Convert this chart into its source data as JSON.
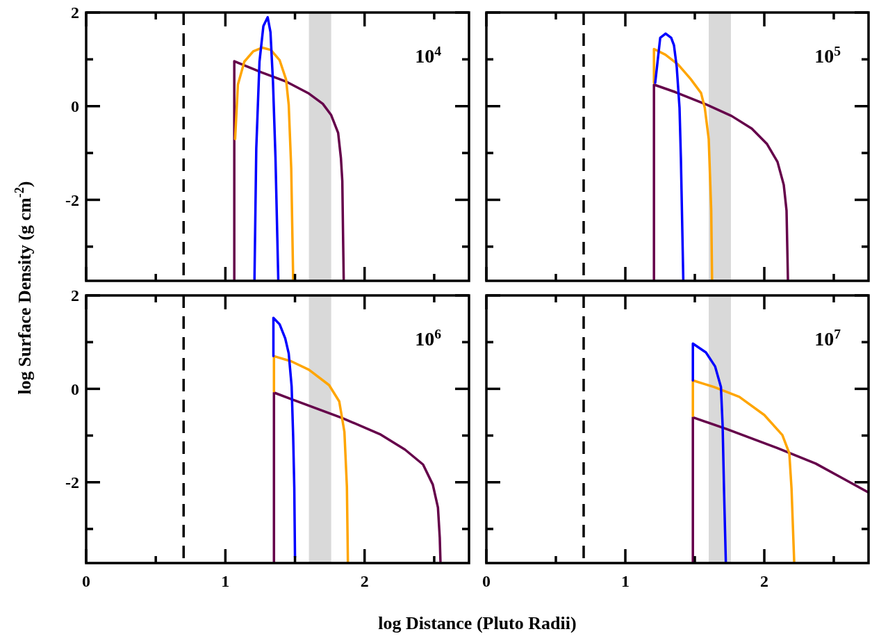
{
  "chart_data": [
    {
      "type": "line",
      "ylabel": "log Surface Density (g cm$^{-2}$)",
      "annotations": [
        "10$^{4}$"
      ],
      "xlim": [
        0,
        2.75
      ],
      "ylim": [
        -3.73,
        2
      ],
      "xticks": [
        0,
        {
          "value": 0.5,
          "label": null
        },
        1,
        {
          "value": 1.5,
          "label": null
        },
        2,
        {
          "value": 2.5,
          "label": null
        }
      ],
      "yticks": [
        {
          "value": -3,
          "label": null
        },
        -2,
        {
          "value": -1,
          "label": null
        },
        0,
        {
          "value": 1,
          "label": null
        },
        2
      ],
      "tick_labels": "y",
      "ref_lines": [
        {
          "axis": "x",
          "value": 0.7,
          "color": "#000000",
          "line_style": "dashed"
        }
      ],
      "bands": [
        {
          "axis": "x",
          "from": 1.6,
          "to": 1.76,
          "color": "#d9d9d9"
        }
      ],
      "series": [
        {
          "color": "#65004a",
          "x": [
            1.064,
            1.064,
            1.26,
            1.44,
            1.6,
            1.7,
            1.76,
            1.81,
            1.83,
            1.84,
            1.845,
            1.85
          ],
          "values": [
            -3.7,
            0.96,
            0.72,
            0.52,
            0.27,
            0.05,
            -0.19,
            -0.57,
            -1.11,
            -1.6,
            -2.7,
            -3.7
          ]
        },
        {
          "color": "#ffa500",
          "x": [
            1.07,
            1.09,
            1.136,
            1.2,
            1.264,
            1.327,
            1.39,
            1.436,
            1.455,
            1.473,
            1.487
          ],
          "values": [
            -0.7,
            0.46,
            0.95,
            1.17,
            1.25,
            1.2,
            0.98,
            0.57,
            0.03,
            -1.33,
            -3.7
          ]
        },
        {
          "color": "#0000ff",
          "x": [
            1.209,
            1.222,
            1.245,
            1.273,
            1.304,
            1.324,
            1.342,
            1.36,
            1.38
          ],
          "values": [
            -3.7,
            -0.9,
            0.95,
            1.71,
            1.9,
            1.58,
            0.52,
            -1.11,
            -3.7
          ]
        }
      ]
    },
    {
      "type": "line",
      "annotations": [
        "10$^{5}$"
      ],
      "xlim": [
        0,
        2.75
      ],
      "ylim": [
        -3.73,
        2
      ],
      "xticks": [
        0,
        {
          "value": 0.5,
          "label": null
        },
        1,
        {
          "value": 1.5,
          "label": null
        },
        2,
        {
          "value": 2.5,
          "label": null
        }
      ],
      "yticks": [
        {
          "value": -3,
          "label": null
        },
        -2,
        {
          "value": -1,
          "label": null
        },
        0,
        {
          "value": 1,
          "label": null
        },
        2
      ],
      "tick_labels": false,
      "ref_lines": [
        {
          "axis": "x",
          "value": 0.7,
          "color": "#000000",
          "line_style": "dashed"
        }
      ],
      "bands": [
        {
          "axis": "x",
          "from": 1.6,
          "to": 1.76,
          "color": "#d9d9d9"
        }
      ],
      "series": [
        {
          "color": "#65004a",
          "x": [
            1.206,
            1.206,
            1.36,
            1.58,
            1.765,
            1.91,
            2.02,
            2.095,
            2.14,
            2.16,
            2.17
          ],
          "values": [
            -3.7,
            0.46,
            0.3,
            0.04,
            -0.21,
            -0.48,
            -0.81,
            -1.19,
            -1.68,
            -2.23,
            -3.7
          ]
        },
        {
          "color": "#ffa500",
          "x": [
            1.206,
            1.206,
            1.288,
            1.38,
            1.47,
            1.545,
            1.572,
            1.6,
            1.618,
            1.624
          ],
          "values": [
            0.5,
            1.22,
            1.1,
            0.89,
            0.58,
            0.28,
            -0.04,
            -0.7,
            -2.23,
            -3.7
          ]
        },
        {
          "color": "#0000ff",
          "x": [
            1.215,
            1.251,
            1.29,
            1.33,
            1.35,
            1.37,
            1.39,
            1.4,
            1.417
          ],
          "values": [
            0.5,
            1.46,
            1.55,
            1.46,
            1.3,
            0.83,
            -0.04,
            -1.14,
            -3.7
          ]
        }
      ]
    },
    {
      "type": "line",
      "xlabel": "log Distance (Pluto Radii)",
      "annotations": [
        "10$^{6}$"
      ],
      "xlim": [
        0,
        2.75
      ],
      "ylim": [
        -3.73,
        2
      ],
      "xticks": [
        0,
        {
          "value": 0.5,
          "label": null
        },
        1,
        {
          "value": 1.5,
          "label": null
        },
        2,
        {
          "value": 2.5,
          "label": null
        }
      ],
      "yticks": [
        {
          "value": -3,
          "label": null
        },
        -2,
        {
          "value": -1,
          "label": null
        },
        0,
        {
          "value": 1,
          "label": null
        },
        2
      ],
      "ref_lines": [
        {
          "axis": "x",
          "value": 0.7,
          "color": "#000000",
          "line_style": "dashed"
        }
      ],
      "bands": [
        {
          "axis": "x",
          "from": 1.6,
          "to": 1.76,
          "color": "#d9d9d9"
        }
      ],
      "series": [
        {
          "color": "#65004a",
          "x": [
            1.349,
            1.349,
            1.473,
            1.836,
            2.11,
            2.29,
            2.42,
            2.49,
            2.527,
            2.54,
            2.545
          ],
          "values": [
            -3.7,
            -0.08,
            -0.22,
            -0.62,
            -0.97,
            -1.3,
            -1.62,
            -2.05,
            -2.54,
            -3.19,
            -3.7
          ]
        },
        {
          "color": "#ffa500",
          "x": [
            1.349,
            1.349,
            1.473,
            1.6,
            1.745,
            1.818,
            1.855,
            1.873,
            1.88
          ],
          "values": [
            -0.05,
            0.7,
            0.59,
            0.41,
            0.08,
            -0.27,
            -0.92,
            -2.1,
            -3.7
          ]
        },
        {
          "color": "#0000ff",
          "x": [
            1.345,
            1.345,
            1.39,
            1.43,
            1.455,
            1.476,
            1.487,
            1.495,
            1.5
          ],
          "values": [
            0.7,
            1.52,
            1.38,
            1.08,
            0.76,
            0.05,
            -1.03,
            -2.11,
            -3.6
          ]
        }
      ]
    },
    {
      "type": "line",
      "annotations": [
        "10$^{7}$"
      ],
      "xlim": [
        0,
        2.75
      ],
      "ylim": [
        -3.73,
        2
      ],
      "xticks": [
        0,
        {
          "value": 0.5,
          "label": null
        },
        1,
        {
          "value": 1.5,
          "label": null
        },
        2,
        {
          "value": 2.5,
          "label": null
        }
      ],
      "yticks": [
        {
          "value": -3,
          "label": null
        },
        -2,
        {
          "value": -1,
          "label": null
        },
        0,
        {
          "value": 1,
          "label": null
        },
        2
      ],
      "tick_labels": "x",
      "ref_lines": [
        {
          "axis": "x",
          "value": 0.7,
          "color": "#000000",
          "line_style": "dashed"
        }
      ],
      "bands": [
        {
          "axis": "x",
          "from": 1.6,
          "to": 1.76,
          "color": "#d9d9d9"
        }
      ],
      "series": [
        {
          "color": "#65004a",
          "x": [
            1.486,
            1.486,
            1.728,
            2.095,
            2.37,
            2.554,
            2.75
          ],
          "values": [
            -3.7,
            -0.61,
            -0.86,
            -1.27,
            -1.6,
            -1.9,
            -2.22
          ]
        },
        {
          "color": "#ffa500",
          "x": [
            1.486,
            1.486,
            1.637,
            1.82,
            2.0,
            2.13,
            2.18,
            2.196,
            2.215
          ],
          "values": [
            -0.58,
            0.18,
            0.04,
            -0.17,
            -0.56,
            -0.99,
            -1.38,
            -2.14,
            -3.7
          ]
        },
        {
          "color": "#0000ff",
          "x": [
            1.486,
            1.486,
            1.58,
            1.646,
            1.688,
            1.7,
            1.71,
            1.723
          ],
          "values": [
            0.18,
            0.97,
            0.78,
            0.48,
            0.04,
            -0.78,
            -2.14,
            -3.7
          ]
        }
      ]
    }
  ]
}
